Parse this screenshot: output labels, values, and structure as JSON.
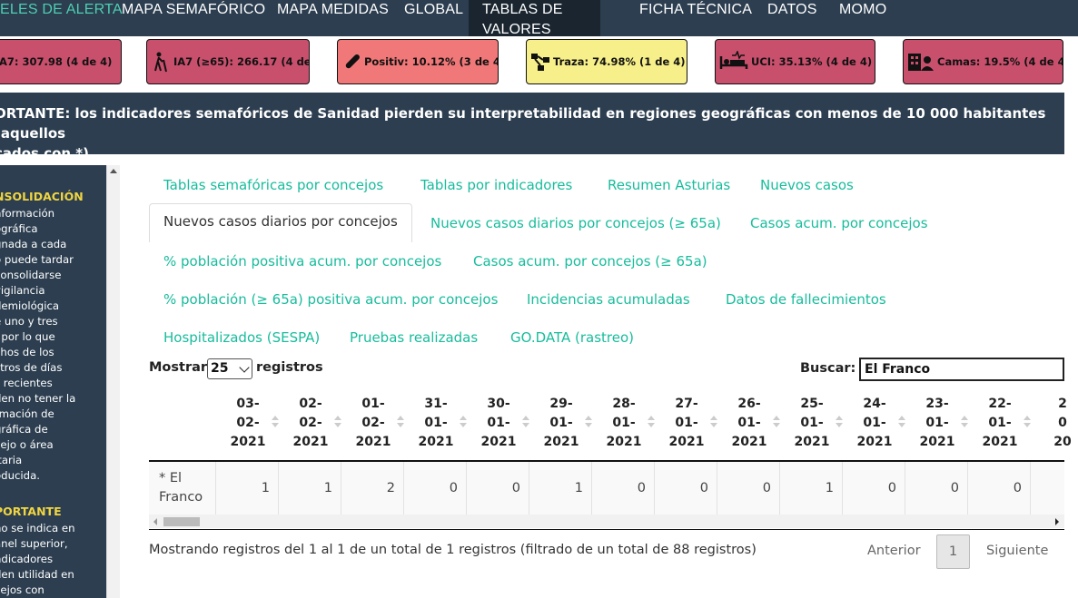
{
  "nav": {
    "items": [
      "ELES DE ALERTA",
      "MAPA SEMAFÓRICO",
      "MAPA MEDIDAS",
      "GLOBAL",
      "TABLAS DE VALORES",
      "FICHA TÉCNICA",
      "DATOS",
      "MOMO"
    ],
    "active": "TABLAS DE VALORES"
  },
  "badges": [
    {
      "label": "A7: 307.98 (4 de 4)",
      "icon": "chart-icon",
      "color": "#c8506d"
    },
    {
      "label": "IA7 (≥65): 266.17 (4 de 4)",
      "icon": "elderly-person-icon",
      "color": "#c8506d"
    },
    {
      "label": "Positiv: 10.12% (3 de 4)",
      "icon": "test-tube-icon",
      "color": "#f07878"
    },
    {
      "label": "Traza: 74.98% (1 de 4)",
      "icon": "network-icon",
      "color": "#f7f08a"
    },
    {
      "label": "UCI: 35.13% (4 de 4)",
      "icon": "hospital-bed-icon",
      "color": "#c8506d"
    },
    {
      "label": "Camas: 19.5% (4 de 4)",
      "icon": "hospital-building-icon",
      "color": "#c8506d"
    }
  ],
  "banner": {
    "line1": "ORTANTE: los indicadores semafóricos de Sanidad pierden su interpretabilidad en regiones geográficas con menos de 10 000 habitantes (aquellos",
    "line2": "cados con *)."
  },
  "sidebar": {
    "heading1": "NSOLIDACIÓN",
    "lines1": [
      "nformación",
      "ográfica",
      "gnada a cada",
      "o puede tardar",
      "consolidarse",
      "vigilancia",
      "demiológica",
      "e uno y tres",
      ", por lo que",
      "chos de los",
      "stros de días",
      "s recientes",
      "den no tener la",
      "rmación de",
      "gráfica de",
      "cejo o área",
      "itaria",
      "oducida."
    ],
    "heading2": "PORTANTE",
    "lines2": [
      "no se indica en",
      "anel superior,",
      "ndicadores",
      "den utilidad en",
      "cejos con"
    ]
  },
  "tabs": {
    "row1": [
      "Tablas semafóricas por concejos",
      "Tablas por indicadores",
      "Resumen Asturias",
      "Nuevos casos"
    ],
    "row2": [
      "Nuevos casos diarios por concejos",
      "Nuevos casos diarios por concejos (≥ 65a)",
      "Casos acum. por concejos"
    ],
    "row3": [
      "% población positiva acum. por concejos",
      "Casos acum. por concejos (≥ 65a)"
    ],
    "row4": [
      "% población (≥ 65a) positiva acum. por concejos",
      "Incidencias acumuladas",
      "Datos de fallecimientos"
    ],
    "row5": [
      "Hospitalizados (SESPA)",
      "Pruebas realizadas",
      "GO.DATA (rastreo)"
    ],
    "active": "Nuevos casos diarios por concejos"
  },
  "controls": {
    "show_label": "Mostrar",
    "page_size": "25",
    "records_label": "registros",
    "search_label": "Buscar:",
    "search_value": "El Franco"
  },
  "table": {
    "columns": [
      [
        "03-",
        "02-",
        "2021"
      ],
      [
        "02-",
        "02-",
        "2021"
      ],
      [
        "01-",
        "02-",
        "2021"
      ],
      [
        "31-",
        "01-",
        "2021"
      ],
      [
        "30-",
        "01-",
        "2021"
      ],
      [
        "29-",
        "01-",
        "2021"
      ],
      [
        "28-",
        "01-",
        "2021"
      ],
      [
        "27-",
        "01-",
        "2021"
      ],
      [
        "26-",
        "01-",
        "2021"
      ],
      [
        "25-",
        "01-",
        "2021"
      ],
      [
        "24-",
        "01-",
        "2021"
      ],
      [
        "23-",
        "01-",
        "2021"
      ],
      [
        "22-",
        "01-",
        "2021"
      ],
      [
        "2",
        "0",
        "20"
      ]
    ],
    "row": {
      "name_line1": "* El",
      "name_line2": "Franco",
      "values": [
        "1",
        "1",
        "2",
        "0",
        "0",
        "1",
        "0",
        "0",
        "0",
        "1",
        "0",
        "0",
        "0"
      ]
    }
  },
  "footer": {
    "info": "Mostrando registros del 1 al 1 de un total de 1 registros (filtrado de un total de 88 registros)",
    "prev": "Anterior",
    "page": "1",
    "next": "Siguiente"
  }
}
